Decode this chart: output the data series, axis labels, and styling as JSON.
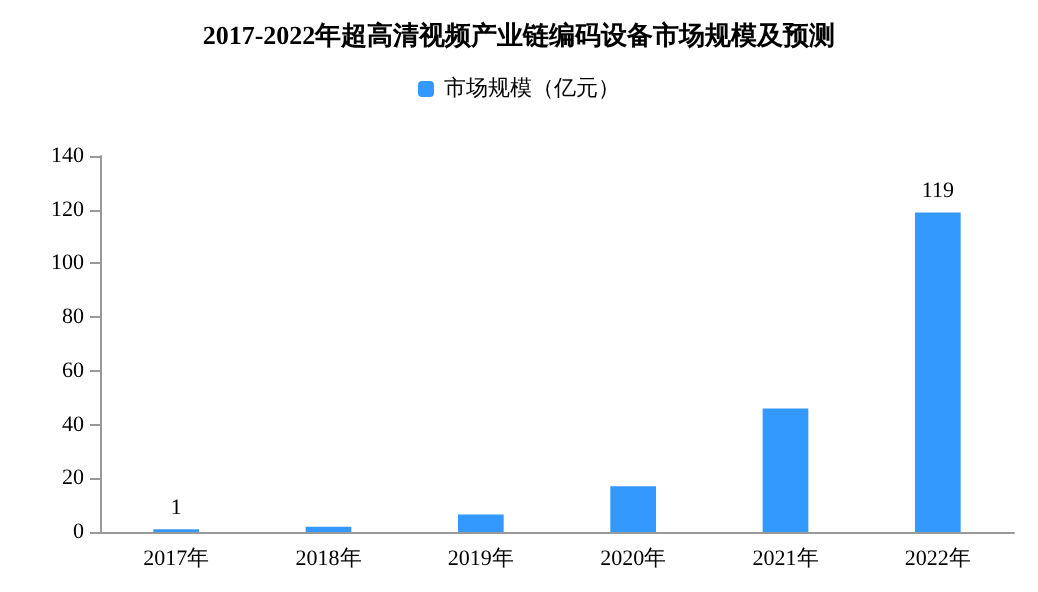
{
  "chart_data": {
    "type": "bar",
    "title": "2017-2022年超高清视频产业链编码设备市场规模及预测",
    "categories": [
      "2017年",
      "2018年",
      "2019年",
      "2020年",
      "2021年",
      "2022年"
    ],
    "series": [
      {
        "name": "市场规模（亿元）",
        "color": "#3399ff",
        "values": [
          1,
          2,
          6.5,
          17,
          46,
          119
        ],
        "value_labels": [
          "1",
          null,
          null,
          null,
          null,
          "119"
        ]
      }
    ],
    "ylim": [
      0,
      140
    ],
    "yticks": [
      0,
      20,
      40,
      60,
      80,
      100,
      120,
      140
    ],
    "grid": false,
    "legend": "top"
  }
}
